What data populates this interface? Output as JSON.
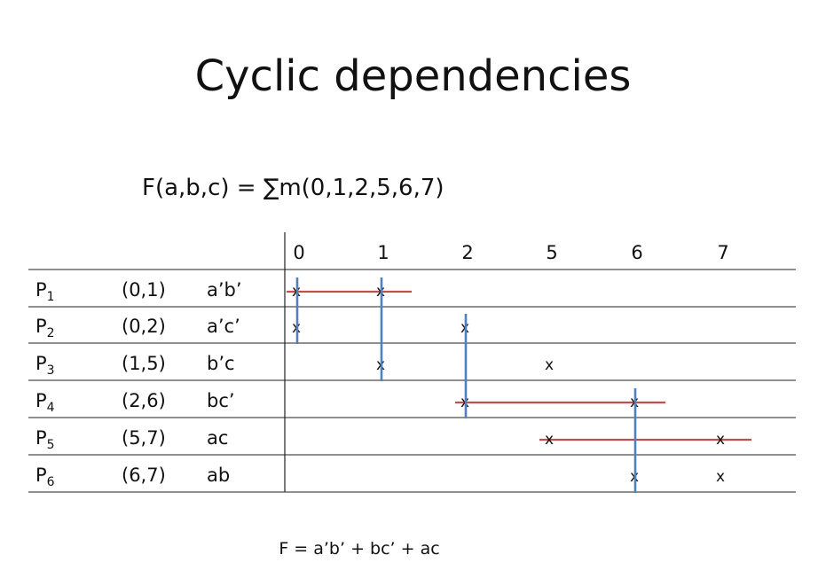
{
  "title": "Cyclic dependencies",
  "function": "F(a,b,c) = ∑m(0,1,2,5,6,7)",
  "result": "F = a’b’ + bc’ + ac",
  "columns": [
    "0",
    "1",
    "2",
    "5",
    "6",
    "7"
  ],
  "mark_symbol": "x",
  "rows": [
    {
      "name": "P",
      "sub": "1",
      "pair": "(0,1)",
      "term": "a’b’",
      "marks": [
        0,
        1
      ]
    },
    {
      "name": "P",
      "sub": "2",
      "pair": "(0,2)",
      "term": "a’c’",
      "marks": [
        0,
        2
      ]
    },
    {
      "name": "P",
      "sub": "3",
      "pair": "(1,5)",
      "term": "b’c",
      "marks": [
        1,
        3
      ]
    },
    {
      "name": "P",
      "sub": "4",
      "pair": "(2,6)",
      "term": "bc’",
      "marks": [
        2,
        4
      ]
    },
    {
      "name": "P",
      "sub": "5",
      "pair": "(5,7)",
      "term": "ac",
      "marks": [
        3,
        5
      ]
    },
    {
      "name": "P",
      "sub": "6",
      "pair": "(6,7)",
      "term": "ab",
      "marks": [
        4,
        5
      ]
    }
  ],
  "selected_rows": [
    0,
    3,
    4
  ],
  "covered_columns": [
    0,
    1,
    2,
    4
  ],
  "colors": {
    "row_line": "#c0504d",
    "column_line": "#4f81bd",
    "grid": "#222222"
  }
}
